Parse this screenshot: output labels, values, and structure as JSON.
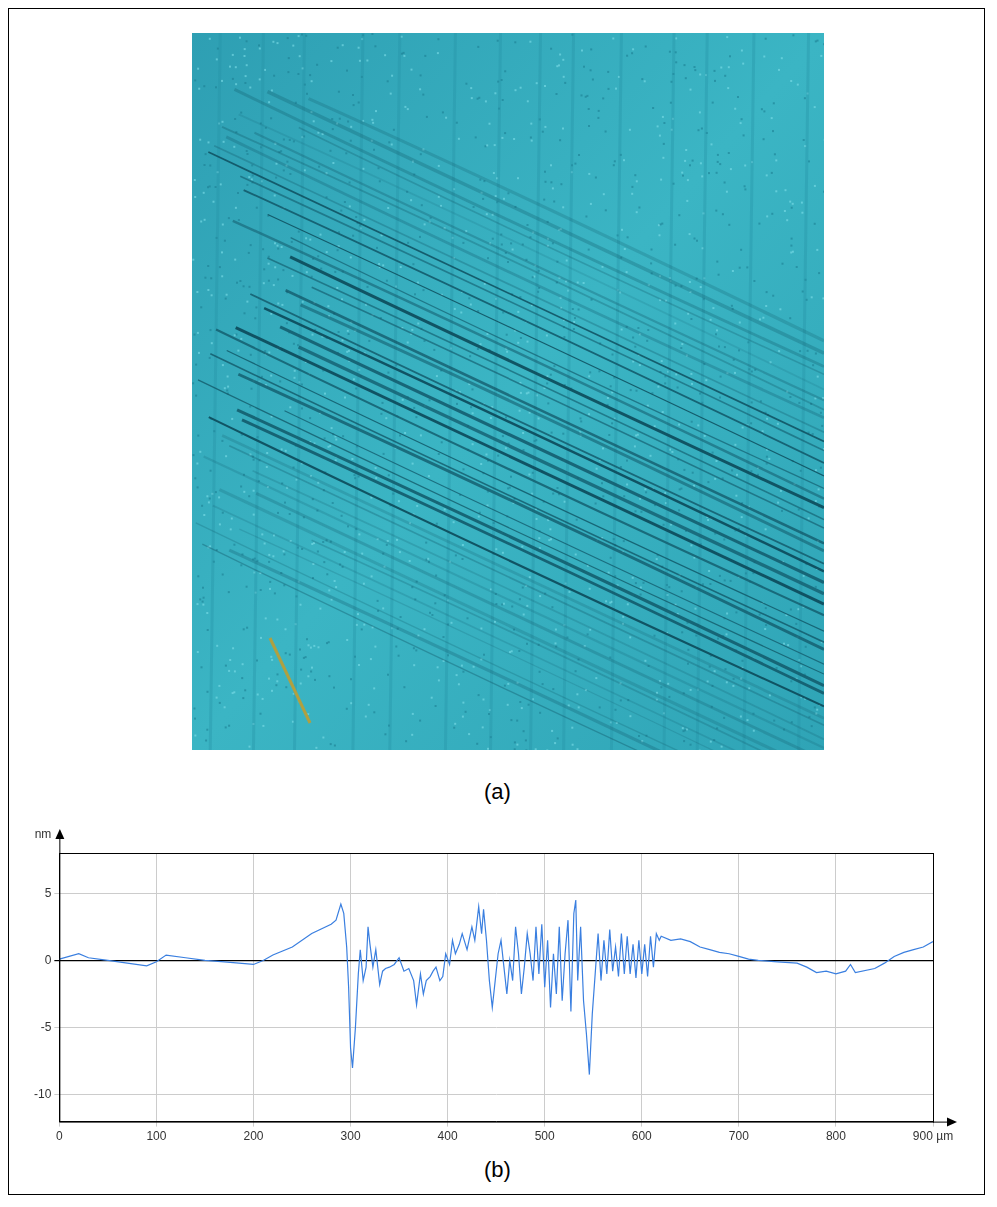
{
  "panel_a": {
    "label": "(a)"
  },
  "panel_b": {
    "label": "(b)"
  },
  "chart_data": {
    "type": "line",
    "y_label": "nm",
    "color": "#3a7fe0",
    "grid": true,
    "xlim": [
      0,
      900
    ],
    "xticks": [
      0,
      100,
      200,
      300,
      400,
      500,
      600,
      700,
      800,
      {
        "value": 900,
        "label": "900 µm"
      }
    ],
    "ylim": [
      -12,
      8
    ],
    "yticks": [
      -10,
      -5,
      0,
      5
    ],
    "x": [
      0,
      20,
      30,
      50,
      90,
      100,
      110,
      130,
      150,
      170,
      200,
      210,
      220,
      240,
      260,
      280,
      285,
      290,
      293,
      296,
      298,
      300,
      302,
      305,
      308,
      310,
      313,
      316,
      318,
      320,
      323,
      326,
      330,
      333,
      336,
      340,
      345,
      350,
      355,
      360,
      365,
      368,
      372,
      375,
      378,
      382,
      385,
      388,
      392,
      395,
      398,
      402,
      405,
      408,
      412,
      415,
      420,
      425,
      428,
      432,
      435,
      437,
      440,
      443,
      446,
      449,
      452,
      455,
      458,
      461,
      464,
      467,
      470,
      473,
      476,
      479,
      482,
      485,
      488,
      491,
      494,
      497,
      500,
      503,
      506,
      509,
      512,
      515,
      518,
      521,
      524,
      527,
      530,
      532,
      534,
      537,
      540,
      543,
      546,
      549,
      552,
      555,
      558,
      561,
      564,
      567,
      570,
      573,
      576,
      579,
      582,
      585,
      588,
      591,
      594,
      597,
      600,
      603,
      606,
      609,
      612,
      615,
      618,
      620,
      630,
      640,
      650,
      660,
      670,
      680,
      690,
      700,
      710,
      720,
      740,
      760,
      770,
      780,
      790,
      800,
      810,
      815,
      820,
      840,
      850,
      860,
      870,
      880,
      890,
      900
    ],
    "values": [
      0.1,
      0.5,
      0.2,
      0.0,
      -0.4,
      -0.1,
      0.4,
      0.2,
      0.0,
      -0.1,
      -0.3,
      0.0,
      0.4,
      1.0,
      2.0,
      2.7,
      3.0,
      4.2,
      3.5,
      1.0,
      -2.0,
      -6.5,
      -8.0,
      -5.0,
      -1.0,
      0.8,
      -1.5,
      -0.5,
      2.5,
      1.2,
      -0.5,
      0.8,
      -1.8,
      -0.8,
      -0.6,
      -0.5,
      -0.3,
      0.2,
      -0.8,
      -0.6,
      -1.5,
      -3.3,
      -1.0,
      -2.5,
      -1.5,
      -1.2,
      -0.8,
      -0.5,
      -1.5,
      -1.2,
      0.5,
      -0.3,
      1.5,
      0.5,
      1.2,
      2.0,
      0.8,
      2.5,
      1.5,
      4.0,
      2.0,
      3.8,
      1.5,
      -1.5,
      -3.5,
      -1.5,
      0.5,
      1.5,
      -0.5,
      -2.5,
      0.0,
      -1.5,
      2.5,
      0.5,
      -2.5,
      -0.5,
      2.0,
      0.5,
      -1.5,
      2.5,
      -1.0,
      2.7,
      -2.0,
      1.5,
      -3.5,
      0.5,
      -2.5,
      2.5,
      -3.0,
      0.5,
      3.0,
      -3.8,
      3.5,
      4.5,
      -1.5,
      2.5,
      -3.0,
      -5.5,
      -8.5,
      -4.0,
      -1.0,
      2.0,
      -1.5,
      1.5,
      -1.0,
      2.3,
      -0.8,
      1.0,
      -1.2,
      2.0,
      -1.0,
      1.8,
      -1.0,
      1.2,
      -1.3,
      1.5,
      -1.0,
      1.2,
      -1.2,
      1.8,
      -0.5,
      2.0,
      1.5,
      1.8,
      1.5,
      1.6,
      1.4,
      1.0,
      0.8,
      0.6,
      0.5,
      0.3,
      0.1,
      0.0,
      -0.1,
      -0.2,
      -0.5,
      -0.9,
      -0.8,
      -1.0,
      -0.8,
      -0.3,
      -0.9,
      -0.6,
      -0.2,
      0.3,
      0.6,
      0.8,
      1.0,
      1.4
    ]
  }
}
